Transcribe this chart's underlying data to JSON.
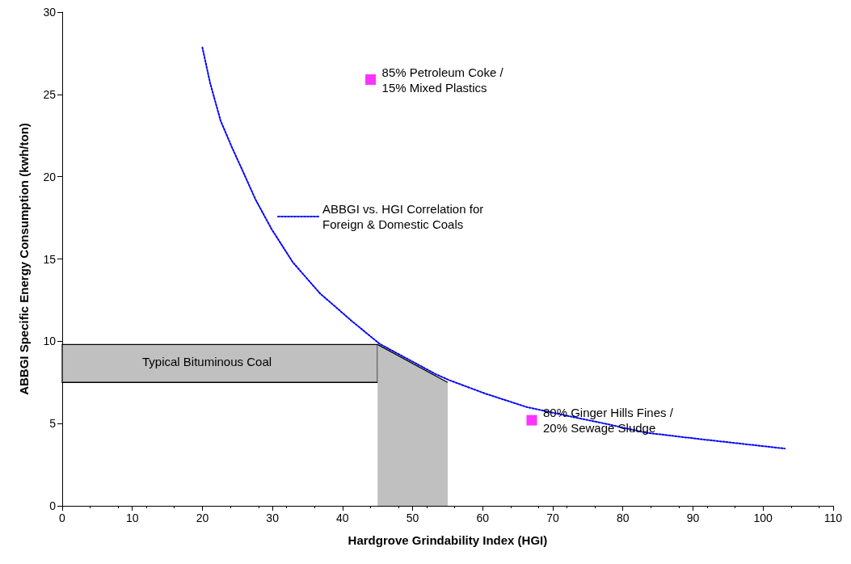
{
  "chart_data": {
    "type": "line",
    "xlabel": "Hardgrove Grindability Index (HGI)",
    "ylabel": "ABBGI Specific Energy Consumption (kwh/ton)",
    "xlim": [
      0,
      110
    ],
    "xticks": [
      0,
      10,
      20,
      30,
      40,
      50,
      60,
      70,
      80,
      90,
      100,
      110
    ],
    "ylim": [
      0,
      30
    ],
    "yticks": [
      0,
      5,
      10,
      15,
      20,
      25,
      30
    ],
    "grid": false,
    "legend": "left",
    "series": [
      {
        "type": "area",
        "color": "#c0c0c0",
        "x": [
          45,
          55
        ],
        "values": [
          9.8,
          7.5
        ]
      },
      {
        "name": "ABBGI vs. HGI Correlation for\nForeign & Domestic Coals",
        "color": "#0000ff",
        "line_style": "dotted",
        "marker": "none",
        "x": [
          20,
          21.1,
          22.6,
          24.2,
          25.7,
          27.6,
          29.9,
          32.9,
          36.8,
          41.4,
          45.3,
          53.3,
          55.2,
          60.5,
          66.3,
          71.7,
          77.4,
          83.2,
          90.9,
          103.1
        ],
        "values": [
          27.85,
          25.7,
          23.4,
          21.8,
          20.4,
          18.6,
          16.8,
          14.8,
          12.9,
          11.2,
          9.84,
          8.0,
          7.64,
          6.8,
          6.0,
          5.5,
          5.0,
          4.45,
          4.06,
          3.48
        ]
      },
      {
        "type": "scatter",
        "color": "#ff00ff",
        "marker": "square",
        "x": [
          44,
          67
        ],
        "values": [
          25.9,
          5.2
        ]
      }
    ],
    "bands": [
      {
        "axis": "y",
        "from": 7.5,
        "to": 9.8,
        "color": "#c0c0c0"
      }
    ],
    "annotations": [
      {
        "text": "85% Petroleum Coke /\n15% Mixed Plastics",
        "x": 44,
        "y": 25.9
      },
      {
        "text": "80% Ginger Hills Fines /\n20% Sewage Sludge",
        "x": 67,
        "y": 5.2
      },
      "Typical Bituminous Coal"
    ]
  }
}
